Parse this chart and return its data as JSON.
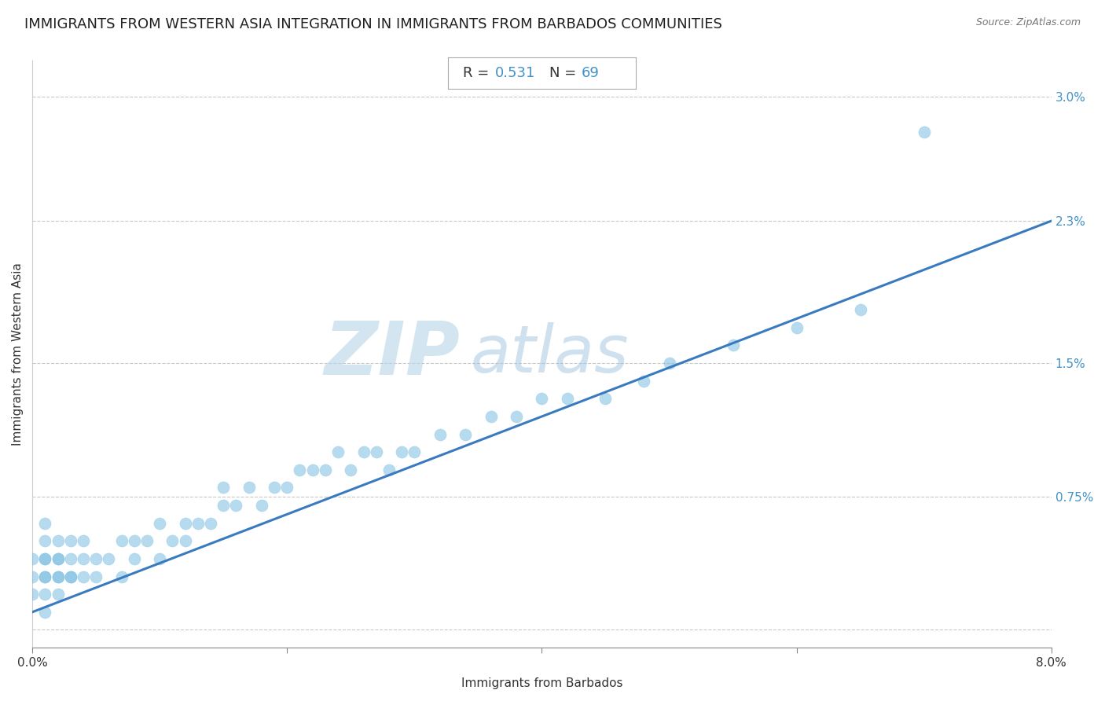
{
  "title": "IMMIGRANTS FROM WESTERN ASIA INTEGRATION IN IMMIGRANTS FROM BARBADOS COMMUNITIES",
  "source": "Source: ZipAtlas.com",
  "xlabel": "Immigrants from Barbados",
  "ylabel": "Immigrants from Western Asia",
  "R": 0.531,
  "N": 69,
  "xlim": [
    0.0,
    0.08
  ],
  "ylim": [
    -0.001,
    0.032
  ],
  "yticks": [
    0.0,
    0.0075,
    0.015,
    0.023,
    0.03
  ],
  "yticklabels": [
    "",
    "0.75%",
    "1.5%",
    "2.3%",
    "3.0%"
  ],
  "scatter_color": "#7bbde0",
  "scatter_alpha": 0.55,
  "scatter_size": 120,
  "line_color": "#3a7abf",
  "line_width": 2.2,
  "background_color": "#ffffff",
  "grid_color": "#c8c8c8",
  "title_fontsize": 13,
  "label_fontsize": 11,
  "tick_fontsize": 11,
  "tick_color": "#4292c6",
  "annotation_box_color": "#4292c6",
  "watermark_zip_color": "#b8d4ea",
  "watermark_atlas_color": "#a0c4e0",
  "scatter_x": [
    0.0,
    0.0,
    0.0,
    0.001,
    0.001,
    0.001,
    0.001,
    0.001,
    0.001,
    0.001,
    0.001,
    0.002,
    0.002,
    0.002,
    0.002,
    0.002,
    0.002,
    0.003,
    0.003,
    0.003,
    0.003,
    0.004,
    0.004,
    0.004,
    0.005,
    0.005,
    0.006,
    0.007,
    0.007,
    0.008,
    0.008,
    0.009,
    0.01,
    0.01,
    0.011,
    0.012,
    0.012,
    0.013,
    0.014,
    0.015,
    0.015,
    0.016,
    0.017,
    0.018,
    0.019,
    0.02,
    0.021,
    0.022,
    0.023,
    0.024,
    0.025,
    0.026,
    0.027,
    0.028,
    0.029,
    0.03,
    0.032,
    0.034,
    0.036,
    0.038,
    0.04,
    0.042,
    0.045,
    0.048,
    0.05,
    0.055,
    0.06,
    0.065,
    0.07
  ],
  "scatter_y": [
    0.002,
    0.003,
    0.004,
    0.001,
    0.002,
    0.003,
    0.004,
    0.005,
    0.003,
    0.004,
    0.006,
    0.002,
    0.003,
    0.004,
    0.005,
    0.003,
    0.004,
    0.003,
    0.004,
    0.005,
    0.003,
    0.004,
    0.005,
    0.003,
    0.004,
    0.003,
    0.004,
    0.005,
    0.003,
    0.004,
    0.005,
    0.005,
    0.004,
    0.006,
    0.005,
    0.006,
    0.005,
    0.006,
    0.006,
    0.007,
    0.008,
    0.007,
    0.008,
    0.007,
    0.008,
    0.008,
    0.009,
    0.009,
    0.009,
    0.01,
    0.009,
    0.01,
    0.01,
    0.009,
    0.01,
    0.01,
    0.011,
    0.011,
    0.012,
    0.012,
    0.013,
    0.013,
    0.013,
    0.014,
    0.015,
    0.016,
    0.017,
    0.018,
    0.028
  ],
  "line_x": [
    0.0,
    0.08
  ],
  "line_y": [
    0.001,
    0.023
  ]
}
